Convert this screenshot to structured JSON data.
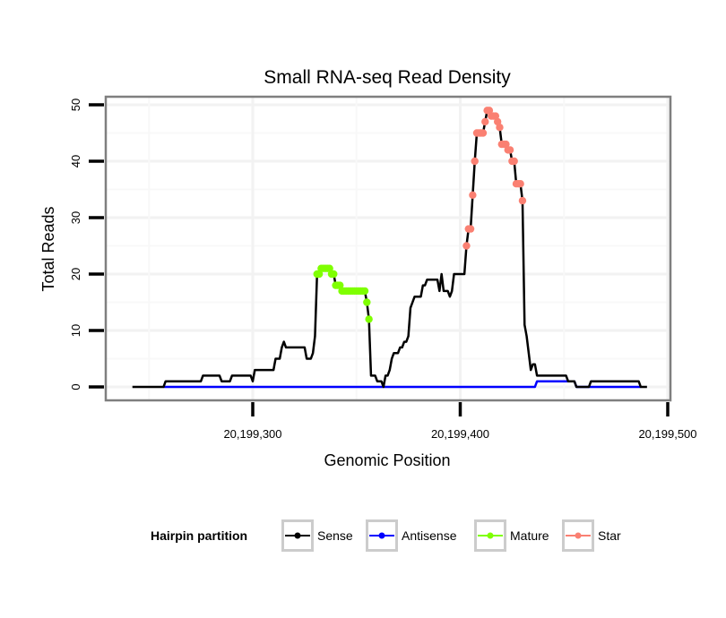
{
  "chart_data": {
    "type": "line",
    "title": "Small RNA-seq Read Density",
    "xlabel": "Genomic Position",
    "ylabel": "Total Reads",
    "xlim": [
      230,
      500
    ],
    "ylim": [
      -2,
      52
    ],
    "x_offset": 20199000,
    "xticks": [
      300,
      400,
      500
    ],
    "xtick_labels": [
      "20,199,300",
      "20,199,400",
      "20,199,500"
    ],
    "yticks": [
      0,
      10,
      20,
      30,
      40,
      50
    ],
    "ytick_labels": [
      "0",
      "10",
      "20",
      "30",
      "40",
      "50"
    ],
    "grid": true,
    "legend": {
      "title": "Hairpin partition",
      "placement": "bottom",
      "entries": [
        {
          "name": "Sense",
          "color": "#000000"
        },
        {
          "name": "Antisense",
          "color": "#0000ff"
        },
        {
          "name": "Mature",
          "color": "#7fff00"
        },
        {
          "name": "Star",
          "color": "#fa8072"
        }
      ]
    },
    "series": [
      {
        "name": "Sense",
        "color": "#000000",
        "kind": "line",
        "points": [
          [
            242,
            0
          ],
          [
            257,
            0
          ],
          [
            258,
            1
          ],
          [
            275,
            1
          ],
          [
            276,
            2
          ],
          [
            284,
            2
          ],
          [
            285,
            1
          ],
          [
            289,
            1
          ],
          [
            290,
            2
          ],
          [
            299,
            2
          ],
          [
            300,
            1
          ],
          [
            301,
            3
          ],
          [
            310,
            3
          ],
          [
            311,
            5
          ],
          [
            313,
            5
          ],
          [
            314,
            7
          ],
          [
            315,
            8
          ],
          [
            316,
            7
          ],
          [
            325,
            7
          ],
          [
            326,
            5
          ],
          [
            328,
            5
          ],
          [
            329,
            6
          ],
          [
            330,
            9
          ],
          [
            331,
            20
          ],
          [
            332,
            20
          ],
          [
            333,
            21
          ],
          [
            337,
            21
          ],
          [
            338,
            20
          ],
          [
            339,
            20
          ],
          [
            340,
            18
          ],
          [
            342,
            18
          ],
          [
            343,
            17
          ],
          [
            354,
            17
          ],
          [
            355,
            15
          ],
          [
            356,
            12
          ],
          [
            357,
            2
          ],
          [
            359,
            2
          ],
          [
            360,
            1
          ],
          [
            362,
            1
          ],
          [
            363,
            0
          ],
          [
            364,
            2
          ],
          [
            365,
            2
          ],
          [
            366,
            3
          ],
          [
            367,
            5
          ],
          [
            368,
            6
          ],
          [
            370,
            6
          ],
          [
            371,
            7
          ],
          [
            372,
            7
          ],
          [
            373,
            8
          ],
          [
            374,
            8
          ],
          [
            375,
            9
          ],
          [
            376,
            14
          ],
          [
            377,
            15
          ],
          [
            378,
            16
          ],
          [
            381,
            16
          ],
          [
            382,
            18
          ],
          [
            383,
            18
          ],
          [
            384,
            19
          ],
          [
            389,
            19
          ],
          [
            390,
            17
          ],
          [
            391,
            20
          ],
          [
            392,
            17
          ],
          [
            394,
            17
          ],
          [
            395,
            16
          ],
          [
            396,
            17
          ],
          [
            397,
            20
          ],
          [
            402,
            20
          ],
          [
            403,
            25
          ],
          [
            404,
            28
          ],
          [
            405,
            28
          ],
          [
            406,
            34
          ],
          [
            407,
            40
          ],
          [
            408,
            45
          ],
          [
            411,
            45
          ],
          [
            412,
            47
          ],
          [
            413,
            49
          ],
          [
            414,
            49
          ],
          [
            415,
            48
          ],
          [
            417,
            48
          ],
          [
            418,
            47
          ],
          [
            419,
            46
          ],
          [
            420,
            43
          ],
          [
            422,
            43
          ],
          [
            423,
            42
          ],
          [
            424,
            42
          ],
          [
            425,
            40
          ],
          [
            426,
            40
          ],
          [
            427,
            36
          ],
          [
            429,
            36
          ],
          [
            430,
            33
          ],
          [
            431,
            11
          ],
          [
            432,
            9
          ],
          [
            433,
            6
          ],
          [
            434,
            3
          ],
          [
            435,
            4
          ],
          [
            436,
            4
          ],
          [
            437,
            2
          ],
          [
            451,
            2
          ],
          [
            452,
            1
          ],
          [
            455,
            1
          ],
          [
            456,
            0
          ],
          [
            462,
            0
          ],
          [
            463,
            1
          ],
          [
            486,
            1
          ],
          [
            487,
            0
          ],
          [
            490,
            0
          ]
        ]
      },
      {
        "name": "Antisense",
        "color": "#0000ff",
        "kind": "line",
        "points": [
          [
            257,
            0
          ],
          [
            436,
            0
          ],
          [
            437,
            1
          ],
          [
            455,
            1
          ],
          [
            456,
            0
          ],
          [
            487,
            0
          ]
        ]
      },
      {
        "name": "Mature",
        "color": "#7fff00",
        "kind": "points",
        "points": [
          [
            331,
            20
          ],
          [
            332,
            20
          ],
          [
            333,
            21
          ],
          [
            334,
            21
          ],
          [
            335,
            21
          ],
          [
            336,
            21
          ],
          [
            337,
            21
          ],
          [
            338,
            20
          ],
          [
            339,
            20
          ],
          [
            340,
            18
          ],
          [
            341,
            18
          ],
          [
            342,
            18
          ],
          [
            343,
            17
          ],
          [
            344,
            17
          ],
          [
            345,
            17
          ],
          [
            346,
            17
          ],
          [
            347,
            17
          ],
          [
            348,
            17
          ],
          [
            349,
            17
          ],
          [
            350,
            17
          ],
          [
            351,
            17
          ],
          [
            352,
            17
          ],
          [
            353,
            17
          ],
          [
            354,
            17
          ],
          [
            355,
            15
          ],
          [
            356,
            12
          ]
        ]
      },
      {
        "name": "Star",
        "color": "#fa8072",
        "kind": "points",
        "points": [
          [
            403,
            25
          ],
          [
            404,
            28
          ],
          [
            405,
            28
          ],
          [
            406,
            34
          ],
          [
            407,
            40
          ],
          [
            408,
            45
          ],
          [
            409,
            45
          ],
          [
            410,
            45
          ],
          [
            411,
            45
          ],
          [
            412,
            47
          ],
          [
            413,
            49
          ],
          [
            414,
            49
          ],
          [
            415,
            48
          ],
          [
            416,
            48
          ],
          [
            417,
            48
          ],
          [
            418,
            47
          ],
          [
            419,
            46
          ],
          [
            420,
            43
          ],
          [
            421,
            43
          ],
          [
            422,
            43
          ],
          [
            423,
            42
          ],
          [
            424,
            42
          ],
          [
            425,
            40
          ],
          [
            426,
            40
          ],
          [
            427,
            36
          ],
          [
            428,
            36
          ],
          [
            429,
            36
          ],
          [
            430,
            33
          ]
        ]
      }
    ]
  }
}
